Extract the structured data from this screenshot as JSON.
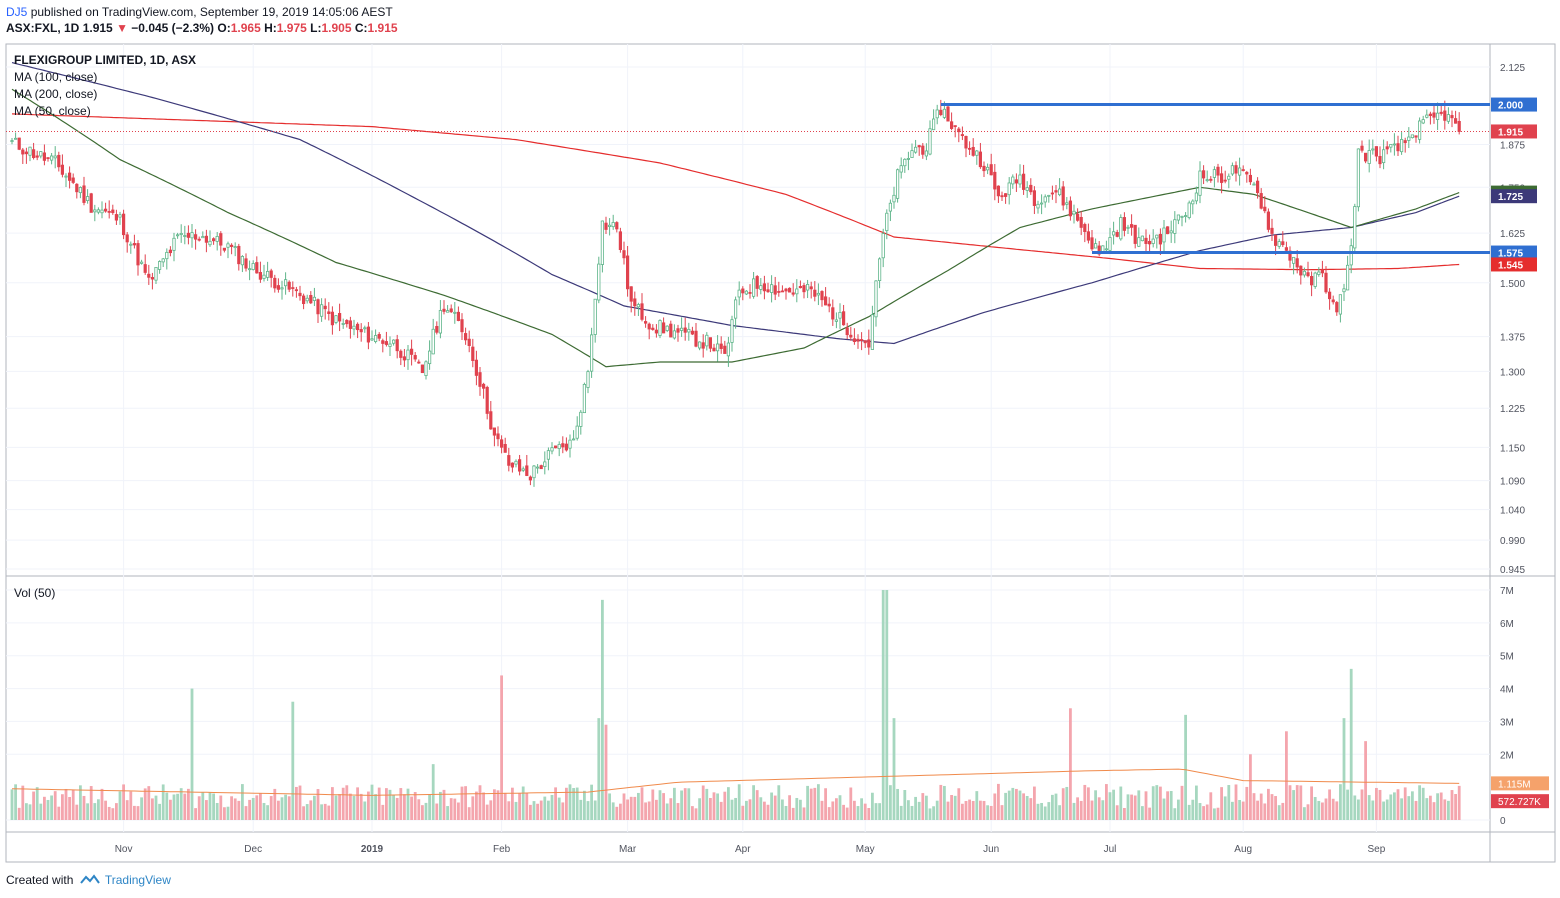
{
  "header": {
    "user": "DJ5",
    "published": "published on TradingView.com, September 19, 2019 14:05:06 AEST"
  },
  "ohlc": {
    "symbol": "ASX:FXL, 1D",
    "last": "1.915",
    "change": "−0.045 (−2.3%)",
    "o_label": "O:",
    "o": "1.965",
    "h_label": "H:",
    "h": "1.975",
    "l_label": "L:",
    "l": "1.905",
    "c_label": "C:",
    "c": "1.915"
  },
  "legend": {
    "title": "FLEXIGROUP LIMITED, 1D, ASX",
    "ma100": "MA (100, close)",
    "ma200": "MA (200, close)",
    "ma50": "MA (50, close)",
    "vol": "Vol (50)"
  },
  "footer": {
    "created": "Created with",
    "brand": "TradingView"
  },
  "colors": {
    "up": "#5fb58a",
    "down": "#e0424e",
    "ma50": "#3d6b33",
    "ma100": "#3c3979",
    "ma200": "#e52d2d",
    "hline": "#2f6fd1",
    "vol_up": "#a6d7bf",
    "vol_down": "#f4a5ad",
    "vol_ma": "#f08a4b"
  },
  "chart_data": {
    "type": "candlestick",
    "title": "FLEXIGROUP LIMITED, 1D, ASX",
    "price_ticks": [
      "2.125",
      "1.875",
      "1.750",
      "1.625",
      "1.500",
      "1.375",
      "1.300",
      "1.225",
      "1.150",
      "1.090",
      "1.040",
      "0.990",
      "0.945"
    ],
    "volume_ticks": [
      "7M",
      "6M",
      "5M",
      "4M",
      "3M",
      "2M",
      "0"
    ],
    "x_labels": [
      "Nov",
      "Dec",
      "2019",
      "Feb",
      "Mar",
      "Apr",
      "May",
      "Jun",
      "Jul",
      "Aug",
      "Sep"
    ],
    "price_anchors": [
      {
        "x": 0,
        "p": 1.88
      },
      {
        "x": 12,
        "p": 1.82
      },
      {
        "x": 22,
        "p": 1.7
      },
      {
        "x": 30,
        "p": 1.66
      },
      {
        "x": 38,
        "p": 1.5
      },
      {
        "x": 46,
        "p": 1.61
      },
      {
        "x": 52,
        "p": 1.62
      },
      {
        "x": 60,
        "p": 1.59
      },
      {
        "x": 66,
        "p": 1.54
      },
      {
        "x": 74,
        "p": 1.5
      },
      {
        "x": 82,
        "p": 1.46
      },
      {
        "x": 90,
        "p": 1.41
      },
      {
        "x": 98,
        "p": 1.38
      },
      {
        "x": 106,
        "p": 1.36
      },
      {
        "x": 114,
        "p": 1.3
      },
      {
        "x": 120,
        "p": 1.45
      },
      {
        "x": 126,
        "p": 1.38
      },
      {
        "x": 130,
        "p": 1.28
      },
      {
        "x": 134,
        "p": 1.17
      },
      {
        "x": 138,
        "p": 1.12
      },
      {
        "x": 144,
        "p": 1.1
      },
      {
        "x": 150,
        "p": 1.14
      },
      {
        "x": 156,
        "p": 1.16
      },
      {
        "x": 160,
        "p": 1.3
      },
      {
        "x": 164,
        "p": 1.65
      },
      {
        "x": 168,
        "p": 1.64
      },
      {
        "x": 172,
        "p": 1.45
      },
      {
        "x": 178,
        "p": 1.4
      },
      {
        "x": 186,
        "p": 1.38
      },
      {
        "x": 194,
        "p": 1.36
      },
      {
        "x": 198,
        "p": 1.33
      },
      {
        "x": 202,
        "p": 1.48
      },
      {
        "x": 208,
        "p": 1.5
      },
      {
        "x": 214,
        "p": 1.48
      },
      {
        "x": 222,
        "p": 1.48
      },
      {
        "x": 228,
        "p": 1.43
      },
      {
        "x": 234,
        "p": 1.38
      },
      {
        "x": 238,
        "p": 1.36
      },
      {
        "x": 242,
        "p": 1.62
      },
      {
        "x": 246,
        "p": 1.78
      },
      {
        "x": 250,
        "p": 1.86
      },
      {
        "x": 254,
        "p": 1.87
      },
      {
        "x": 258,
        "p": 1.99
      },
      {
        "x": 264,
        "p": 1.89
      },
      {
        "x": 270,
        "p": 1.82
      },
      {
        "x": 274,
        "p": 1.72
      },
      {
        "x": 280,
        "p": 1.78
      },
      {
        "x": 284,
        "p": 1.72
      },
      {
        "x": 290,
        "p": 1.74
      },
      {
        "x": 296,
        "p": 1.66
      },
      {
        "x": 302,
        "p": 1.57
      },
      {
        "x": 308,
        "p": 1.65
      },
      {
        "x": 314,
        "p": 1.6
      },
      {
        "x": 320,
        "p": 1.62
      },
      {
        "x": 326,
        "p": 1.68
      },
      {
        "x": 330,
        "p": 1.78
      },
      {
        "x": 336,
        "p": 1.78
      },
      {
        "x": 340,
        "p": 1.8
      },
      {
        "x": 346,
        "p": 1.74
      },
      {
        "x": 350,
        "p": 1.62
      },
      {
        "x": 356,
        "p": 1.56
      },
      {
        "x": 360,
        "p": 1.5
      },
      {
        "x": 364,
        "p": 1.52
      },
      {
        "x": 368,
        "p": 1.42
      },
      {
        "x": 372,
        "p": 1.58
      },
      {
        "x": 374,
        "p": 1.85
      },
      {
        "x": 380,
        "p": 1.84
      },
      {
        "x": 386,
        "p": 1.87
      },
      {
        "x": 390,
        "p": 1.92
      },
      {
        "x": 394,
        "p": 1.95
      },
      {
        "x": 398,
        "p": 1.97
      },
      {
        "x": 402,
        "p": 1.915
      }
    ],
    "ma50": [
      {
        "x": 0,
        "p": 2.05
      },
      {
        "x": 30,
        "p": 1.83
      },
      {
        "x": 60,
        "p": 1.68
      },
      {
        "x": 90,
        "p": 1.55
      },
      {
        "x": 120,
        "p": 1.47
      },
      {
        "x": 150,
        "p": 1.38
      },
      {
        "x": 165,
        "p": 1.31
      },
      {
        "x": 180,
        "p": 1.32
      },
      {
        "x": 200,
        "p": 1.32
      },
      {
        "x": 220,
        "p": 1.35
      },
      {
        "x": 238,
        "p": 1.42
      },
      {
        "x": 260,
        "p": 1.53
      },
      {
        "x": 280,
        "p": 1.64
      },
      {
        "x": 300,
        "p": 1.69
      },
      {
        "x": 320,
        "p": 1.73
      },
      {
        "x": 330,
        "p": 1.75
      },
      {
        "x": 345,
        "p": 1.73
      },
      {
        "x": 360,
        "p": 1.68
      },
      {
        "x": 372,
        "p": 1.64
      },
      {
        "x": 390,
        "p": 1.69
      },
      {
        "x": 402,
        "p": 1.735
      }
    ],
    "ma100": [
      {
        "x": 0,
        "p": 2.14
      },
      {
        "x": 40,
        "p": 2.02
      },
      {
        "x": 80,
        "p": 1.89
      },
      {
        "x": 110,
        "p": 1.73
      },
      {
        "x": 150,
        "p": 1.52
      },
      {
        "x": 170,
        "p": 1.445
      },
      {
        "x": 200,
        "p": 1.4
      },
      {
        "x": 230,
        "p": 1.37
      },
      {
        "x": 245,
        "p": 1.36
      },
      {
        "x": 270,
        "p": 1.43
      },
      {
        "x": 300,
        "p": 1.5
      },
      {
        "x": 330,
        "p": 1.58
      },
      {
        "x": 350,
        "p": 1.62
      },
      {
        "x": 372,
        "p": 1.64
      },
      {
        "x": 390,
        "p": 1.68
      },
      {
        "x": 402,
        "p": 1.725
      }
    ],
    "ma200": [
      {
        "x": 0,
        "p": 1.97
      },
      {
        "x": 50,
        "p": 1.95
      },
      {
        "x": 100,
        "p": 1.93
      },
      {
        "x": 140,
        "p": 1.89
      },
      {
        "x": 180,
        "p": 1.82
      },
      {
        "x": 215,
        "p": 1.73
      },
      {
        "x": 245,
        "p": 1.615
      },
      {
        "x": 275,
        "p": 1.587
      },
      {
        "x": 305,
        "p": 1.56
      },
      {
        "x": 330,
        "p": 1.535
      },
      {
        "x": 360,
        "p": 1.532
      },
      {
        "x": 385,
        "p": 1.535
      },
      {
        "x": 402,
        "p": 1.545
      }
    ],
    "vol_spikes": [
      {
        "x": 50,
        "v": 4.0
      },
      {
        "x": 78,
        "v": 3.6
      },
      {
        "x": 117,
        "v": 1.7
      },
      {
        "x": 136,
        "v": 4.4
      },
      {
        "x": 163,
        "v": 3.1
      },
      {
        "x": 164,
        "v": 6.7
      },
      {
        "x": 165,
        "v": 2.9
      },
      {
        "x": 242,
        "v": 7.0
      },
      {
        "x": 243,
        "v": 7.0
      },
      {
        "x": 245,
        "v": 3.1
      },
      {
        "x": 294,
        "v": 3.4
      },
      {
        "x": 326,
        "v": 3.2
      },
      {
        "x": 344,
        "v": 2.0
      },
      {
        "x": 354,
        "v": 2.7
      },
      {
        "x": 370,
        "v": 3.1
      },
      {
        "x": 372,
        "v": 4.6
      },
      {
        "x": 376,
        "v": 2.4
      }
    ],
    "vol_ma": [
      {
        "x": 0,
        "v": 0.95
      },
      {
        "x": 100,
        "v": 0.75
      },
      {
        "x": 160,
        "v": 0.85
      },
      {
        "x": 185,
        "v": 1.15
      },
      {
        "x": 300,
        "v": 1.5
      },
      {
        "x": 325,
        "v": 1.55
      },
      {
        "x": 342,
        "v": 1.2
      },
      {
        "x": 402,
        "v": 1.115
      }
    ],
    "hlines": [
      {
        "p": 2.0,
        "from": 258
      },
      {
        "p": 1.575,
        "from": 300
      }
    ],
    "labels": [
      {
        "text": "2.000",
        "p": 2.0,
        "bg": "#2f6fd1"
      },
      {
        "text": "1.915",
        "p": 1.915,
        "bg": "#e0424e"
      },
      {
        "text": "1.735",
        "p": 1.735,
        "bg": "#3d6b33"
      },
      {
        "text": "1.725",
        "p": 1.725,
        "bg": "#3c3979"
      },
      {
        "text": "1.575",
        "p": 1.575,
        "bg": "#2f6fd1"
      },
      {
        "text": "1.545",
        "p": 1.545,
        "bg": "#e52d2d"
      }
    ],
    "vol_labels": [
      {
        "text": "1.115M",
        "v": 1.115,
        "bg": "#f5a26b"
      },
      {
        "text": "572.727K",
        "v": 0.573,
        "bg": "#e0424e"
      }
    ]
  }
}
